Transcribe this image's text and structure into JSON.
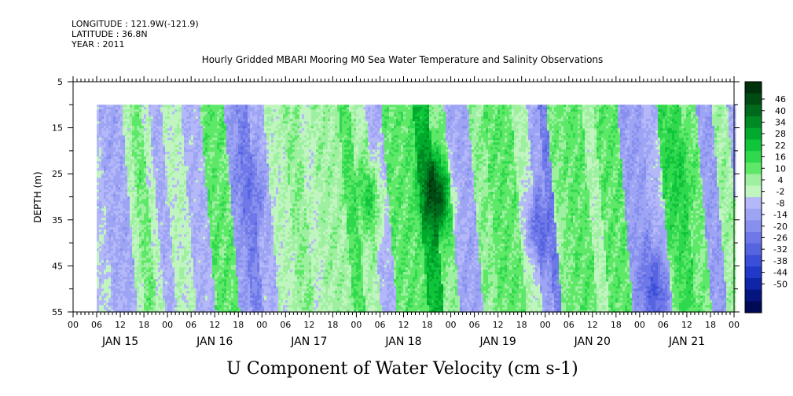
{
  "header": {
    "longitude": "LONGITUDE : 121.9W(-121.9)",
    "latitude": "LATITUDE : 36.8N",
    "year": "YEAR : 2011"
  },
  "chart_data": {
    "type": "heatmap",
    "title": "Hourly Gridded MBARI Mooring M0 Sea Water Temperature and Salinity Observations",
    "xlabel": "U Component of Water Velocity (cm s-1)",
    "ylabel": "DEPTH (m)",
    "ylim": [
      55,
      5
    ],
    "y_ticks": [
      5,
      15,
      25,
      35,
      45,
      55
    ],
    "x_range_hours": [
      0,
      168
    ],
    "data_start_hour": 6,
    "depth_top": 10,
    "x_hour_labels": [
      "00",
      "06",
      "12",
      "18",
      "00",
      "06",
      "12",
      "18",
      "00",
      "06",
      "12",
      "18",
      "00",
      "06",
      "12",
      "18",
      "00",
      "06",
      "12",
      "18",
      "00",
      "06",
      "12",
      "18",
      "00",
      "06",
      "12",
      "18",
      "00"
    ],
    "day_labels": [
      "JAN 15",
      "JAN 16",
      "JAN 17",
      "JAN 18",
      "JAN 19",
      "JAN 20",
      "JAN 21"
    ],
    "colorbar": {
      "labels": [
        "46",
        "40",
        "34",
        "28",
        "22",
        "16",
        "10",
        "4",
        "-2",
        "-8",
        "-14",
        "-20",
        "-26",
        "-32",
        "-38",
        "-44",
        "-50"
      ],
      "colors": [
        "#00300c",
        "#004a14",
        "#006a1c",
        "#008a24",
        "#00aa2c",
        "#10c43c",
        "#30d84e",
        "#5ee868",
        "#9ef0a0",
        "#c0f5c0",
        "#b4b8f8",
        "#9ea4f4",
        "#8890ee",
        "#6e78e8",
        "#5664e0",
        "#3a4ed8",
        "#2238c8",
        "#1024a8",
        "#061480",
        "#000a55"
      ],
      "scale_min": -50,
      "scale_max": 52
    },
    "bands": [
      {
        "start": 6,
        "end": 12,
        "value": -5
      },
      {
        "start": 12,
        "end": 14,
        "value": 6
      },
      {
        "start": 14,
        "end": 17,
        "value": 12
      },
      {
        "start": 17,
        "end": 19,
        "value": 4
      },
      {
        "start": 19,
        "end": 22,
        "value": -4
      },
      {
        "start": 22,
        "end": 27,
        "value": 4
      },
      {
        "start": 27,
        "end": 32,
        "value": -3
      },
      {
        "start": 32,
        "end": 38,
        "value": 14
      },
      {
        "start": 38,
        "end": 41,
        "value": -8
      },
      {
        "start": 41,
        "end": 44,
        "value": -14
      },
      {
        "start": 44,
        "end": 48,
        "value": -4
      },
      {
        "start": 48,
        "end": 53,
        "value": 5
      },
      {
        "start": 53,
        "end": 57,
        "value": 10
      },
      {
        "start": 57,
        "end": 60,
        "value": 4
      },
      {
        "start": 60,
        "end": 67,
        "value": 8
      },
      {
        "start": 67,
        "end": 70,
        "value": 16
      },
      {
        "start": 70,
        "end": 74,
        "value": 6
      },
      {
        "start": 74,
        "end": 78,
        "value": -4
      },
      {
        "start": 78,
        "end": 86,
        "value": 14
      },
      {
        "start": 86,
        "end": 90,
        "value": 26
      },
      {
        "start": 90,
        "end": 94,
        "value": 10
      },
      {
        "start": 94,
        "end": 100,
        "value": -6
      },
      {
        "start": 100,
        "end": 104,
        "value": 10
      },
      {
        "start": 104,
        "end": 111,
        "value": 14
      },
      {
        "start": 111,
        "end": 115,
        "value": 6
      },
      {
        "start": 115,
        "end": 118,
        "value": -6
      },
      {
        "start": 118,
        "end": 120,
        "value": -16
      },
      {
        "start": 120,
        "end": 124,
        "value": 12
      },
      {
        "start": 124,
        "end": 129,
        "value": 14
      },
      {
        "start": 129,
        "end": 132,
        "value": 6
      },
      {
        "start": 132,
        "end": 138,
        "value": 14
      },
      {
        "start": 138,
        "end": 144,
        "value": -8
      },
      {
        "start": 144,
        "end": 148,
        "value": -4
      },
      {
        "start": 148,
        "end": 154,
        "value": 18
      },
      {
        "start": 154,
        "end": 158,
        "value": 12
      },
      {
        "start": 158,
        "end": 162,
        "value": -8
      },
      {
        "start": 162,
        "end": 166,
        "value": 8
      },
      {
        "start": 166,
        "end": 168,
        "value": -6
      }
    ],
    "features": [
      {
        "hour": 90,
        "depth": 29,
        "value": 46
      },
      {
        "hour": 43,
        "depth": 28,
        "value": -18
      },
      {
        "hour": 152,
        "depth": 25,
        "value": 22
      },
      {
        "hour": 116,
        "depth": 37,
        "value": -20
      },
      {
        "hour": 144,
        "depth": 50,
        "value": -24
      },
      {
        "hour": 73,
        "depth": 30,
        "value": 20
      }
    ]
  }
}
